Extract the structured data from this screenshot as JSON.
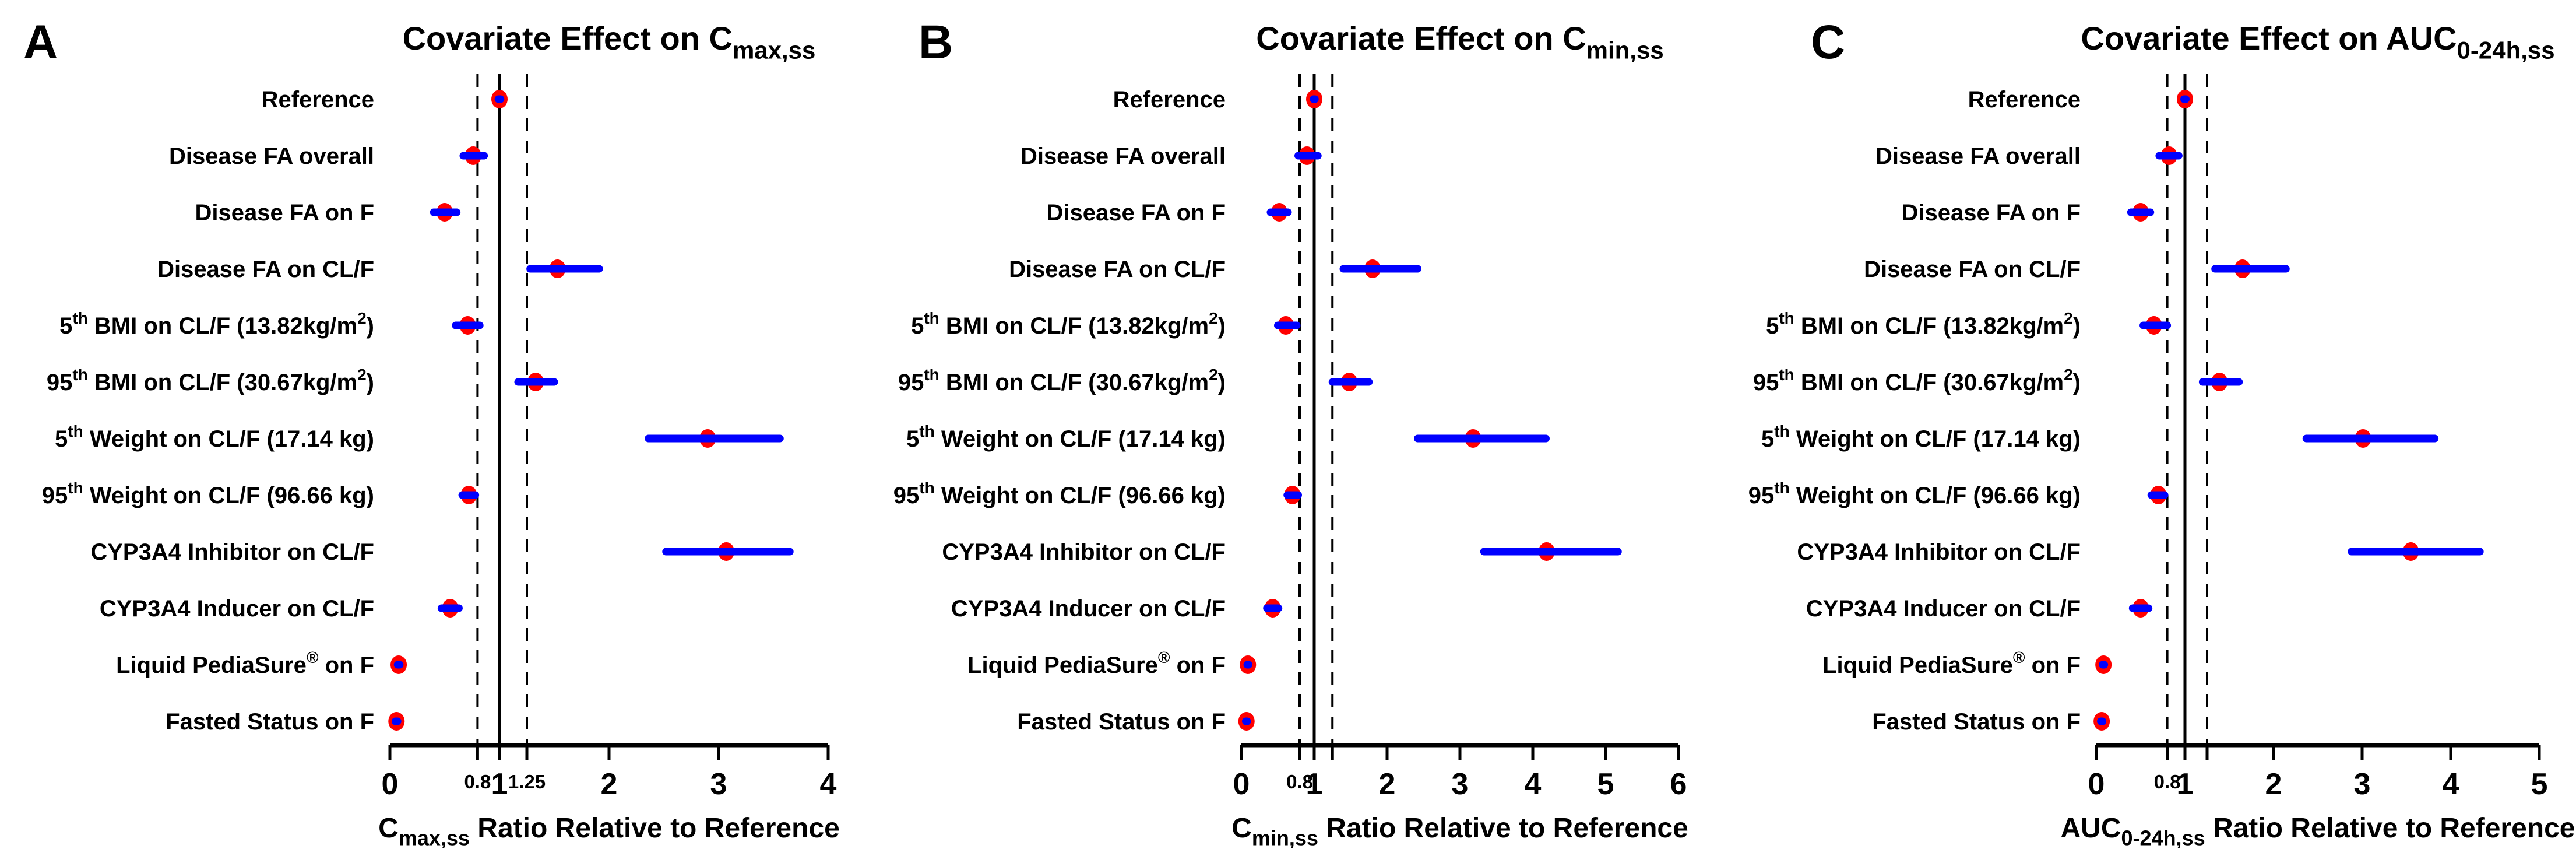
{
  "colors": {
    "point": "#ff0000",
    "ci_bar": "#0000ff",
    "axis": "#000000",
    "text": "#000000",
    "background": "#ffffff"
  },
  "chart_data": {
    "type": "forest",
    "description": "Covariate effects on steady-state exposure metrics, ratio relative to reference with 90% CI",
    "reference_lines": {
      "solid": 1,
      "dashed": [
        0.8,
        1.25
      ]
    },
    "categories": [
      [
        {
          "t": "Reference"
        }
      ],
      [
        {
          "t": "Disease FA overall"
        }
      ],
      [
        {
          "t": "Disease FA on F"
        }
      ],
      [
        {
          "t": "Disease FA on CL/F"
        }
      ],
      [
        {
          "t": "5"
        },
        {
          "t": "th",
          "sup": true
        },
        {
          "t": " BMI on CL/F (13.82kg/m"
        },
        {
          "t": "2",
          "sup": true
        },
        {
          "t": ")"
        }
      ],
      [
        {
          "t": "95"
        },
        {
          "t": "th",
          "sup": true
        },
        {
          "t": " BMI on CL/F (30.67kg/m"
        },
        {
          "t": "2",
          "sup": true
        },
        {
          "t": ")"
        }
      ],
      [
        {
          "t": "5"
        },
        {
          "t": "th",
          "sup": true
        },
        {
          "t": " Weight on CL/F (17.14 kg)"
        }
      ],
      [
        {
          "t": "95"
        },
        {
          "t": "th",
          "sup": true
        },
        {
          "t": " Weight on CL/F (96.66 kg)"
        }
      ],
      [
        {
          "t": "CYP3A4 Inhibitor on CL/F"
        }
      ],
      [
        {
          "t": "CYP3A4 Inducer on CL/F"
        }
      ],
      [
        {
          "t": "Liquid PediaSure"
        },
        {
          "t": "®",
          "sup": true
        },
        {
          "t": " on F"
        }
      ],
      [
        {
          "t": "Fasted Status on F"
        }
      ]
    ],
    "panels": [
      {
        "panel_label": "A",
        "title": [
          {
            "t": "Covariate Effect on C"
          },
          {
            "t": "max,ss",
            "sub": true
          }
        ],
        "xlabel": [
          {
            "t": "C"
          },
          {
            "t": "max,ss",
            "sub": true
          },
          {
            "t": " Ratio Relative to Reference"
          }
        ],
        "xlim": [
          0,
          4
        ],
        "ticks": [
          {
            "v": 0,
            "label": "0",
            "minor": false
          },
          {
            "v": 0.8,
            "label": "0.8",
            "minor": true
          },
          {
            "v": 1,
            "label": "1",
            "minor": false
          },
          {
            "v": 1.25,
            "label": "1.25",
            "minor": true
          },
          {
            "v": 2,
            "label": "2",
            "minor": false
          },
          {
            "v": 3,
            "label": "3",
            "minor": false
          },
          {
            "v": 4,
            "label": "4",
            "minor": false
          }
        ],
        "points": [
          {
            "value": 1.0,
            "lo": 0.99,
            "hi": 1.01
          },
          {
            "value": 0.76,
            "lo": 0.67,
            "hi": 0.86
          },
          {
            "value": 0.5,
            "lo": 0.4,
            "hi": 0.61
          },
          {
            "value": 1.53,
            "lo": 1.28,
            "hi": 1.91
          },
          {
            "value": 0.71,
            "lo": 0.6,
            "hi": 0.82
          },
          {
            "value": 1.33,
            "lo": 1.17,
            "hi": 1.5
          },
          {
            "value": 2.9,
            "lo": 2.36,
            "hi": 3.56
          },
          {
            "value": 0.72,
            "lo": 0.66,
            "hi": 0.78
          },
          {
            "value": 3.07,
            "lo": 2.52,
            "hi": 3.65
          },
          {
            "value": 0.55,
            "lo": 0.47,
            "hi": 0.63
          },
          {
            "value": 0.08,
            "lo": 0.07,
            "hi": 0.09
          },
          {
            "value": 0.06,
            "lo": 0.05,
            "hi": 0.07
          }
        ]
      },
      {
        "panel_label": "B",
        "title": [
          {
            "t": "Covariate Effect on C"
          },
          {
            "t": "min,ss",
            "sub": true
          }
        ],
        "xlabel": [
          {
            "t": "C"
          },
          {
            "t": "min,ss",
            "sub": true
          },
          {
            "t": " Ratio Relative to Reference"
          }
        ],
        "xlim": [
          0,
          6
        ],
        "ticks": [
          {
            "v": 0,
            "label": "0",
            "minor": false
          },
          {
            "v": 0.8,
            "label": "0.8",
            "minor": true
          },
          {
            "v": 1,
            "label": "1",
            "minor": false
          },
          {
            "v": 1.25,
            "label": "",
            "minor": true
          },
          {
            "v": 2,
            "label": "2",
            "minor": false
          },
          {
            "v": 3,
            "label": "3",
            "minor": false
          },
          {
            "v": 4,
            "label": "4",
            "minor": false
          },
          {
            "v": 5,
            "label": "5",
            "minor": false
          },
          {
            "v": 6,
            "label": "6",
            "minor": false
          }
        ],
        "points": [
          {
            "value": 1.0,
            "lo": 0.99,
            "hi": 1.01
          },
          {
            "value": 0.9,
            "lo": 0.78,
            "hi": 1.05
          },
          {
            "value": 0.52,
            "lo": 0.4,
            "hi": 0.64
          },
          {
            "value": 1.8,
            "lo": 1.4,
            "hi": 2.42
          },
          {
            "value": 0.61,
            "lo": 0.5,
            "hi": 0.76
          },
          {
            "value": 1.48,
            "lo": 1.25,
            "hi": 1.75
          },
          {
            "value": 3.18,
            "lo": 2.42,
            "hi": 4.18
          },
          {
            "value": 0.7,
            "lo": 0.63,
            "hi": 0.78
          },
          {
            "value": 4.19,
            "lo": 3.33,
            "hi": 5.17
          },
          {
            "value": 0.43,
            "lo": 0.35,
            "hi": 0.51
          },
          {
            "value": 0.09,
            "lo": 0.08,
            "hi": 0.1
          },
          {
            "value": 0.07,
            "lo": 0.06,
            "hi": 0.08
          }
        ]
      },
      {
        "panel_label": "C",
        "title": [
          {
            "t": "Covariate Effect on AUC"
          },
          {
            "t": "0-24h,ss",
            "sub": true
          }
        ],
        "xlabel": [
          {
            "t": "AUC"
          },
          {
            "t": "0-24h,ss",
            "sub": true
          },
          {
            "t": " Ratio Relative to Reference"
          }
        ],
        "xlim": [
          0,
          5
        ],
        "ticks": [
          {
            "v": 0,
            "label": "0",
            "minor": false
          },
          {
            "v": 0.8,
            "label": "0.8",
            "minor": true
          },
          {
            "v": 1,
            "label": "1",
            "minor": false
          },
          {
            "v": 1.25,
            "label": "",
            "minor": true
          },
          {
            "v": 2,
            "label": "2",
            "minor": false
          },
          {
            "v": 3,
            "label": "3",
            "minor": false
          },
          {
            "v": 4,
            "label": "4",
            "minor": false
          },
          {
            "v": 5,
            "label": "5",
            "minor": false
          }
        ],
        "points": [
          {
            "value": 1.0,
            "lo": 0.99,
            "hi": 1.01
          },
          {
            "value": 0.82,
            "lo": 0.71,
            "hi": 0.93
          },
          {
            "value": 0.5,
            "lo": 0.39,
            "hi": 0.61
          },
          {
            "value": 1.65,
            "lo": 1.34,
            "hi": 2.14
          },
          {
            "value": 0.65,
            "lo": 0.53,
            "hi": 0.8
          },
          {
            "value": 1.39,
            "lo": 1.2,
            "hi": 1.61
          },
          {
            "value": 3.01,
            "lo": 2.37,
            "hi": 3.82
          },
          {
            "value": 0.7,
            "lo": 0.62,
            "hi": 0.77
          },
          {
            "value": 3.55,
            "lo": 2.88,
            "hi": 4.33
          },
          {
            "value": 0.5,
            "lo": 0.41,
            "hi": 0.59
          },
          {
            "value": 0.08,
            "lo": 0.07,
            "hi": 0.09
          },
          {
            "value": 0.06,
            "lo": 0.05,
            "hi": 0.07
          }
        ]
      }
    ]
  }
}
